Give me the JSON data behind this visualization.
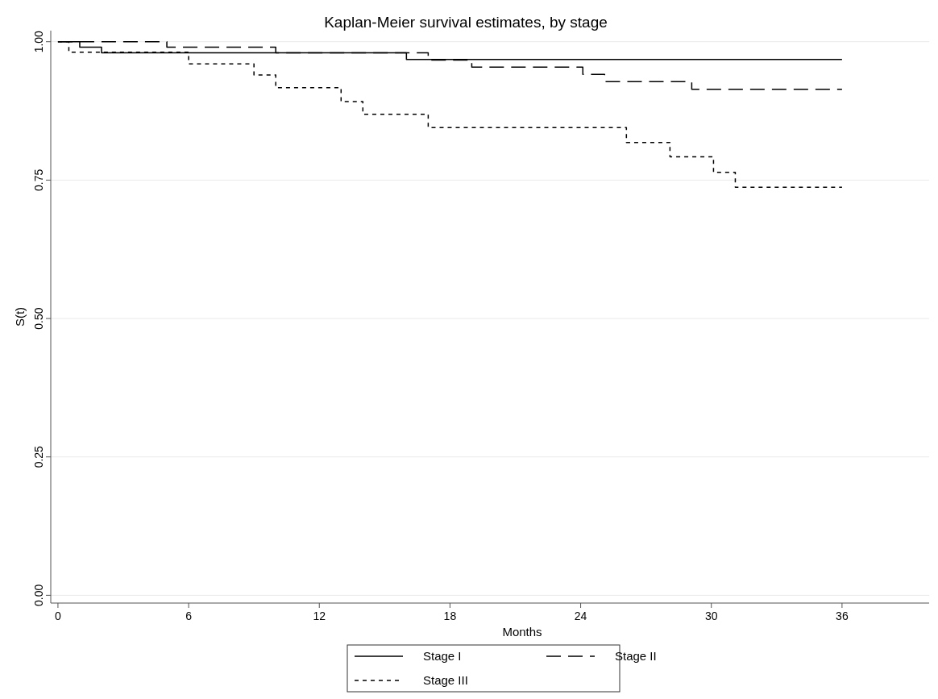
{
  "chart_data": {
    "type": "step",
    "title": "Kaplan-Meier survival estimates, by stage",
    "xlabel": "Months",
    "ylabel": "S(t)",
    "xlim": [
      -0.33,
      40
    ],
    "xticks": [
      0,
      6,
      12,
      18,
      24,
      30,
      36
    ],
    "ylim": [
      -0.014,
      1.02
    ],
    "yticks": [
      {
        "value": 0,
        "label": "0.00"
      },
      {
        "value": 0.25,
        "label": "0.25"
      },
      {
        "value": 0.5,
        "label": "0.50"
      },
      {
        "value": 0.75,
        "label": "0.75"
      },
      {
        "value": 1,
        "label": "1.00"
      }
    ],
    "grid": "y",
    "legend": "bottom",
    "marker": "none",
    "series": [
      {
        "name": "Stage I",
        "color": "#000000",
        "line_style": "solid",
        "x": [
          0,
          1,
          2,
          16,
          36
        ],
        "values": [
          1,
          0.99,
          0.98,
          0.968,
          0.968
        ]
      },
      {
        "name": "Stage II",
        "color": "#000000",
        "line_style": "dashed",
        "x": [
          0,
          5,
          10,
          17,
          19,
          24.1,
          25.1,
          29.1,
          36
        ],
        "values": [
          1,
          0.99,
          0.98,
          0.967,
          0.954,
          0.941,
          0.928,
          0.914,
          0.914
        ]
      },
      {
        "name": "Stage III",
        "color": "#000000",
        "line_style": "dotted",
        "x": [
          0,
          0.5,
          6,
          9,
          10,
          13,
          14,
          17,
          26.1,
          28.1,
          30.1,
          31.1,
          36
        ],
        "values": [
          1,
          0.981,
          0.96,
          0.94,
          0.917,
          0.892,
          0.869,
          0.845,
          0.818,
          0.792,
          0.764,
          0.737,
          0.737
        ]
      }
    ]
  }
}
